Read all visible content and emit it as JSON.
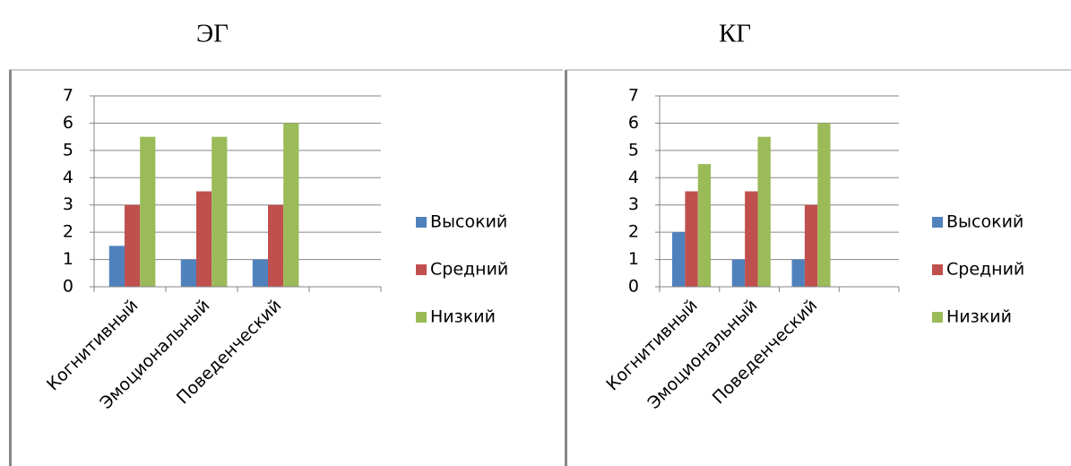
{
  "chart_data": [
    {
      "type": "bar",
      "title": "ЭГ",
      "categories": [
        "Когнитивный",
        "Эмоциональный",
        "Поведенческий",
        null
      ],
      "series": [
        {
          "name": "Высокий",
          "color": "#4f81bd",
          "values": [
            1.5,
            1,
            1,
            null
          ]
        },
        {
          "name": "Средний",
          "color": "#c0504d",
          "values": [
            3,
            3.5,
            3,
            null
          ]
        },
        {
          "name": "Низкий",
          "color": "#9bbb59",
          "values": [
            5.5,
            5.5,
            6,
            null
          ]
        }
      ],
      "ylim": [
        0,
        7
      ],
      "yticks": [
        0,
        1,
        2,
        3,
        4,
        5,
        6,
        7
      ],
      "grid": true,
      "legend": "right"
    },
    {
      "type": "bar",
      "title": "КГ",
      "categories": [
        "Когнитивный",
        "Эмоциональный",
        "Поведенческий",
        null
      ],
      "series": [
        {
          "name": "Высокий",
          "color": "#4f81bd",
          "values": [
            2,
            1,
            1,
            null
          ]
        },
        {
          "name": "Средний",
          "color": "#c0504d",
          "values": [
            3.5,
            3.5,
            3,
            null
          ]
        },
        {
          "name": "Низкий",
          "color": "#9bbb59",
          "values": [
            4.5,
            5.5,
            6,
            null
          ]
        }
      ],
      "ylim": [
        0,
        7
      ],
      "yticks": [
        0,
        1,
        2,
        3,
        4,
        5,
        6,
        7
      ],
      "grid": true,
      "legend": "right"
    }
  ]
}
